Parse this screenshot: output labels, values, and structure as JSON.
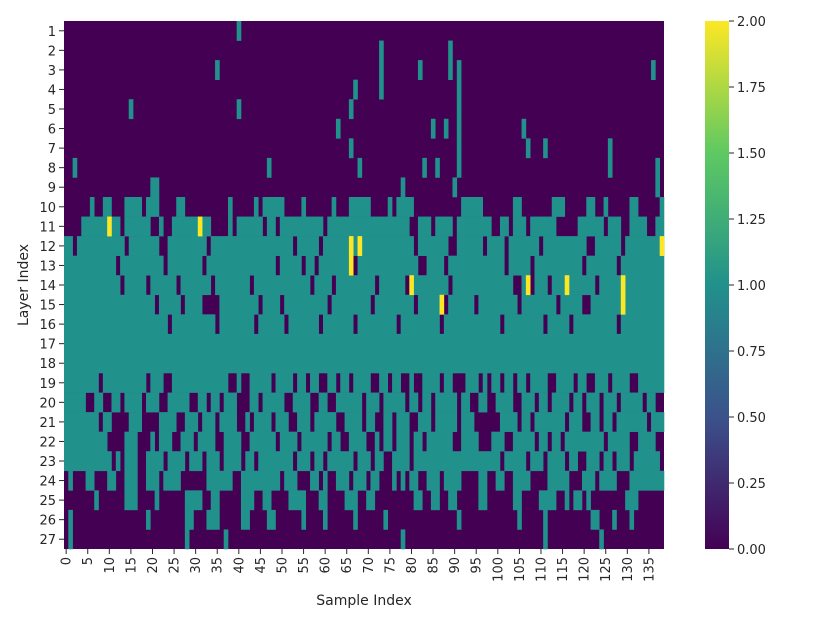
{
  "chart_data": {
    "type": "heatmap",
    "title": "",
    "xlabel": "Sample Index",
    "ylabel": "Layer Index",
    "n_samples": 139,
    "layers": [
      "1",
      "2",
      "3",
      "4",
      "5",
      "6",
      "7",
      "8",
      "9",
      "10",
      "11",
      "12",
      "13",
      "14",
      "15",
      "16",
      "17",
      "18",
      "19",
      "20",
      "21",
      "22",
      "23",
      "24",
      "25",
      "26",
      "27"
    ],
    "x_tick_labels": [
      "0",
      "5",
      "10",
      "15",
      "20",
      "25",
      "30",
      "35",
      "40",
      "45",
      "50",
      "55",
      "60",
      "65",
      "70",
      "75",
      "80",
      "85",
      "90",
      "95",
      "100",
      "105",
      "110",
      "115",
      "120",
      "125",
      "130",
      "135"
    ],
    "colorbar": {
      "min": 0.0,
      "max": 2.0,
      "tick_labels": [
        "0.00",
        "0.25",
        "0.50",
        "0.75",
        "1.00",
        "1.25",
        "1.50",
        "1.75",
        "2.00"
      ],
      "colormap": "viridis",
      "colors": [
        "#440154",
        "#3b528b",
        "#21918c",
        "#5ec962",
        "#fde725"
      ]
    },
    "ones_by_layer": [
      [
        [
          40,
          40
        ]
      ],
      [
        [
          73,
          73
        ],
        [
          89,
          89
        ]
      ],
      [
        [
          35,
          35
        ],
        [
          73,
          73
        ],
        [
          82,
          82
        ],
        [
          89,
          89
        ],
        [
          91,
          91
        ],
        [
          136,
          136
        ]
      ],
      [
        [
          67,
          67
        ],
        [
          73,
          73
        ],
        [
          91,
          91
        ]
      ],
      [
        [
          15,
          15
        ],
        [
          40,
          40
        ],
        [
          66,
          66
        ],
        [
          91,
          91
        ]
      ],
      [
        [
          63,
          63
        ],
        [
          85,
          85
        ],
        [
          88,
          88
        ],
        [
          91,
          91
        ],
        [
          106,
          106
        ]
      ],
      [
        [
          66,
          66
        ],
        [
          91,
          91
        ],
        [
          107,
          107
        ],
        [
          111,
          111
        ],
        [
          126,
          126
        ]
      ],
      [
        [
          2,
          2
        ],
        [
          47,
          47
        ],
        [
          68,
          68
        ],
        [
          83,
          83
        ],
        [
          86,
          86
        ],
        [
          91,
          91
        ],
        [
          126,
          126
        ],
        [
          137,
          137
        ]
      ],
      [
        [
          20,
          21
        ],
        [
          78,
          78
        ],
        [
          90,
          90
        ],
        [
          137,
          137
        ]
      ],
      [
        [
          6,
          6
        ],
        [
          9,
          10
        ],
        [
          14,
          17
        ],
        [
          19,
          21
        ],
        [
          26,
          27
        ],
        [
          38,
          38
        ],
        [
          44,
          44
        ],
        [
          46,
          50
        ],
        [
          55,
          55
        ],
        [
          62,
          62
        ],
        [
          66,
          70
        ],
        [
          75,
          75
        ],
        [
          77,
          80
        ],
        [
          92,
          96
        ],
        [
          104,
          105
        ],
        [
          113,
          115
        ],
        [
          121,
          122
        ],
        [
          125,
          125
        ],
        [
          131,
          132
        ],
        [
          138,
          138
        ]
      ],
      [
        [
          4,
          12
        ],
        [
          14,
          19
        ],
        [
          22,
          22
        ],
        [
          25,
          33
        ],
        [
          38,
          38
        ],
        [
          40,
          45
        ],
        [
          47,
          48
        ],
        [
          50,
          59
        ],
        [
          61,
          79
        ],
        [
          82,
          84
        ],
        [
          86,
          89
        ],
        [
          91,
          98
        ],
        [
          101,
          102
        ],
        [
          104,
          106
        ],
        [
          108,
          113
        ],
        [
          119,
          124
        ],
        [
          126,
          128
        ],
        [
          131,
          134
        ],
        [
          137,
          138
        ]
      ],
      [
        [
          0,
          1
        ],
        [
          3,
          13
        ],
        [
          15,
          21
        ],
        [
          24,
          32
        ],
        [
          34,
          52
        ],
        [
          54,
          58
        ],
        [
          60,
          80
        ],
        [
          82,
          88
        ],
        [
          91,
          96
        ],
        [
          98,
          101
        ],
        [
          103,
          109
        ],
        [
          111,
          120
        ],
        [
          123,
          128
        ],
        [
          130,
          138
        ]
      ],
      [
        [
          0,
          11
        ],
        [
          13,
          22
        ],
        [
          24,
          31
        ],
        [
          33,
          48
        ],
        [
          50,
          54
        ],
        [
          56,
          57
        ],
        [
          59,
          66
        ],
        [
          68,
          81
        ],
        [
          84,
          87
        ],
        [
          89,
          101
        ],
        [
          103,
          107
        ],
        [
          109,
          119
        ],
        [
          121,
          127
        ],
        [
          129,
          138
        ]
      ],
      [
        [
          0,
          12
        ],
        [
          14,
          18
        ],
        [
          20,
          25
        ],
        [
          27,
          33
        ],
        [
          35,
          42
        ],
        [
          44,
          56
        ],
        [
          58,
          61
        ],
        [
          63,
          71
        ],
        [
          73,
          78
        ],
        [
          81,
          88
        ],
        [
          90,
          103
        ],
        [
          106,
          107
        ],
        [
          109,
          111
        ],
        [
          113,
          115
        ],
        [
          117,
          122
        ],
        [
          124,
          128
        ],
        [
          130,
          138
        ]
      ],
      [
        [
          0,
          20
        ],
        [
          22,
          26
        ],
        [
          28,
          31
        ],
        [
          36,
          44
        ],
        [
          46,
          49
        ],
        [
          51,
          60
        ],
        [
          62,
          70
        ],
        [
          72,
          80
        ],
        [
          82,
          86
        ],
        [
          89,
          94
        ],
        [
          96,
          104
        ],
        [
          106,
          113
        ],
        [
          115,
          119
        ],
        [
          122,
          128
        ],
        [
          130,
          138
        ]
      ],
      [
        [
          0,
          23
        ],
        [
          25,
          34
        ],
        [
          36,
          43
        ],
        [
          45,
          50
        ],
        [
          52,
          58
        ],
        [
          60,
          66
        ],
        [
          68,
          76
        ],
        [
          78,
          86
        ],
        [
          88,
          100
        ],
        [
          102,
          110
        ],
        [
          112,
          116
        ],
        [
          118,
          127
        ],
        [
          129,
          138
        ]
      ],
      [
        [
          0,
          138
        ]
      ],
      [
        [
          0,
          138
        ]
      ],
      [
        [
          0,
          7
        ],
        [
          9,
          18
        ],
        [
          20,
          22
        ],
        [
          25,
          37
        ],
        [
          40,
          40
        ],
        [
          43,
          47
        ],
        [
          49,
          52
        ],
        [
          54,
          55
        ],
        [
          57,
          58
        ],
        [
          61,
          62
        ],
        [
          64,
          65
        ],
        [
          67,
          70
        ],
        [
          73,
          74
        ],
        [
          76,
          77
        ],
        [
          80,
          80
        ],
        [
          83,
          86
        ],
        [
          88,
          89
        ],
        [
          93,
          95
        ],
        [
          97,
          97
        ],
        [
          99,
          100
        ],
        [
          102,
          103
        ],
        [
          105,
          106
        ],
        [
          108,
          111
        ],
        [
          114,
          117
        ],
        [
          119,
          120
        ],
        [
          123,
          125
        ],
        [
          127,
          130
        ],
        [
          133,
          138
        ]
      ],
      [
        [
          0,
          4
        ],
        [
          7,
          8
        ],
        [
          11,
          12
        ],
        [
          14,
          17
        ],
        [
          19,
          21
        ],
        [
          24,
          28
        ],
        [
          31,
          32
        ],
        [
          34,
          35
        ],
        [
          37,
          39
        ],
        [
          43,
          44
        ],
        [
          46,
          50
        ],
        [
          53,
          56
        ],
        [
          59,
          60
        ],
        [
          63,
          68
        ],
        [
          70,
          72
        ],
        [
          74,
          78
        ],
        [
          80,
          81
        ],
        [
          83,
          84
        ],
        [
          86,
          90
        ],
        [
          92,
          93
        ],
        [
          96,
          97
        ],
        [
          100,
          103
        ],
        [
          106,
          108
        ],
        [
          110,
          111
        ],
        [
          113,
          116
        ],
        [
          118,
          119
        ],
        [
          121,
          123
        ],
        [
          125,
          127
        ],
        [
          129,
          133
        ],
        [
          135,
          136
        ]
      ],
      [
        [
          0,
          7
        ],
        [
          9,
          10
        ],
        [
          15,
          17
        ],
        [
          22,
          25
        ],
        [
          28,
          30
        ],
        [
          32,
          34
        ],
        [
          36,
          39
        ],
        [
          42,
          42
        ],
        [
          44,
          47
        ],
        [
          49,
          51
        ],
        [
          54,
          56
        ],
        [
          58,
          62
        ],
        [
          65,
          68
        ],
        [
          70,
          71
        ],
        [
          74,
          75
        ],
        [
          77,
          79
        ],
        [
          82,
          84
        ],
        [
          86,
          90
        ],
        [
          92,
          94
        ],
        [
          101,
          104
        ],
        [
          106,
          107
        ],
        [
          109,
          115
        ],
        [
          117,
          119
        ],
        [
          122,
          123
        ],
        [
          125,
          126
        ],
        [
          128,
          134
        ],
        [
          136,
          138
        ]
      ],
      [
        [
          0,
          9
        ],
        [
          14,
          16
        ],
        [
          20,
          20
        ],
        [
          22,
          24
        ],
        [
          27,
          29
        ],
        [
          31,
          34
        ],
        [
          37,
          40
        ],
        [
          43,
          48
        ],
        [
          50,
          53
        ],
        [
          55,
          60
        ],
        [
          62,
          63
        ],
        [
          66,
          69
        ],
        [
          72,
          72
        ],
        [
          74,
          75
        ],
        [
          77,
          79
        ],
        [
          81,
          82
        ],
        [
          84,
          89
        ],
        [
          92,
          95
        ],
        [
          99,
          101
        ],
        [
          104,
          108
        ],
        [
          110,
          111
        ],
        [
          113,
          114
        ],
        [
          116,
          124
        ],
        [
          126,
          130
        ],
        [
          133,
          136
        ]
      ],
      [
        [
          0,
          10
        ],
        [
          12,
          12
        ],
        [
          14,
          16
        ],
        [
          19,
          22
        ],
        [
          24,
          27
        ],
        [
          29,
          31
        ],
        [
          33,
          35
        ],
        [
          37,
          40
        ],
        [
          42,
          43
        ],
        [
          45,
          52
        ],
        [
          54,
          56
        ],
        [
          58,
          59
        ],
        [
          61,
          66
        ],
        [
          68,
          70
        ],
        [
          72,
          73
        ],
        [
          76,
          79
        ],
        [
          81,
          100
        ],
        [
          102,
          106
        ],
        [
          108,
          110
        ],
        [
          112,
          115
        ],
        [
          117,
          118
        ],
        [
          121,
          123
        ],
        [
          125,
          126
        ],
        [
          128,
          130
        ],
        [
          132,
          137
        ]
      ],
      [
        [
          1,
          1
        ],
        [
          5,
          6
        ],
        [
          10,
          11
        ],
        [
          14,
          16
        ],
        [
          19,
          21
        ],
        [
          23,
          26
        ],
        [
          33,
          38
        ],
        [
          41,
          49
        ],
        [
          51,
          53
        ],
        [
          57,
          58
        ],
        [
          60,
          60
        ],
        [
          63,
          65
        ],
        [
          67,
          69
        ],
        [
          71,
          72
        ],
        [
          76,
          76
        ],
        [
          78,
          78
        ],
        [
          80,
          81
        ],
        [
          84,
          86
        ],
        [
          88,
          91
        ],
        [
          96,
          97
        ],
        [
          100,
          101
        ],
        [
          104,
          107
        ],
        [
          112,
          116
        ],
        [
          120,
          122
        ],
        [
          124,
          127
        ],
        [
          131,
          138
        ]
      ],
      [
        [
          7,
          7
        ],
        [
          14,
          16
        ],
        [
          21,
          21
        ],
        [
          28,
          31
        ],
        [
          34,
          35
        ],
        [
          41,
          43
        ],
        [
          46,
          47
        ],
        [
          52,
          55
        ],
        [
          59,
          60
        ],
        [
          65,
          67
        ],
        [
          70,
          71
        ],
        [
          81,
          82
        ],
        [
          85,
          86
        ],
        [
          89,
          90
        ],
        [
          96,
          97
        ],
        [
          104,
          105
        ],
        [
          110,
          113
        ],
        [
          116,
          116
        ],
        [
          118,
          119
        ],
        [
          121,
          121
        ],
        [
          130,
          132
        ]
      ],
      [
        [
          1,
          1
        ],
        [
          19,
          19
        ],
        [
          28,
          29
        ],
        [
          33,
          35
        ],
        [
          41,
          42
        ],
        [
          47,
          48
        ],
        [
          55,
          55
        ],
        [
          60,
          60
        ],
        [
          67,
          67
        ],
        [
          74,
          74
        ],
        [
          91,
          91
        ],
        [
          105,
          105
        ],
        [
          111,
          111
        ],
        [
          122,
          123
        ],
        [
          127,
          127
        ],
        [
          131,
          131
        ]
      ],
      [
        [
          1,
          1
        ],
        [
          28,
          28
        ],
        [
          37,
          37
        ],
        [
          78,
          78
        ],
        [
          111,
          111
        ],
        [
          124,
          124
        ]
      ]
    ],
    "twos_by_layer": [
      [],
      [],
      [],
      [],
      [],
      [],
      [],
      [],
      [],
      [],
      [
        [
          10,
          10
        ],
        [
          31,
          31
        ]
      ],
      [
        [
          66,
          66
        ],
        [
          68,
          68
        ],
        [
          138,
          138
        ]
      ],
      [
        [
          66,
          66
        ]
      ],
      [
        [
          80,
          80
        ],
        [
          107,
          107
        ],
        [
          116,
          116
        ],
        [
          129,
          129
        ]
      ],
      [
        [
          87,
          87
        ],
        [
          129,
          129
        ]
      ],
      [],
      [],
      [],
      [],
      [],
      [],
      [],
      [],
      [],
      [],
      [],
      []
    ]
  }
}
